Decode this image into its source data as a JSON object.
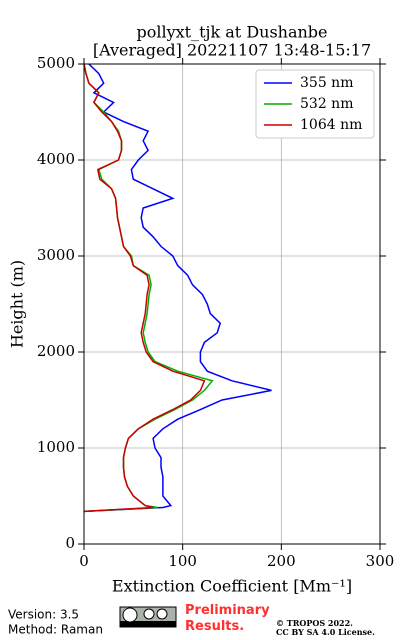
{
  "chart_data": {
    "type": "line",
    "title": "pollyxt_tjk at Dushanbe",
    "subtitle": "[Averaged] 20221107 13:48-15:17",
    "xlabel": "Extinction Coefficient [Mm⁻¹]",
    "ylabel": "Height (m)",
    "y": [
      340,
      380,
      400,
      500,
      600,
      700,
      800,
      900,
      1000,
      1100,
      1200,
      1300,
      1400,
      1500,
      1600,
      1700,
      1800,
      1900,
      2000,
      2100,
      2200,
      2300,
      2400,
      2500,
      2600,
      2700,
      2800,
      2900,
      3000,
      3100,
      3200,
      3300,
      3400,
      3500,
      3600,
      3700,
      3800,
      3900,
      4000,
      4100,
      4200,
      4300,
      4400,
      4500,
      4600,
      4700,
      4800,
      4900,
      5000
    ],
    "series": [
      {
        "name": "355 nm",
        "color": "#0000ff",
        "values": [
          0,
          80,
          88,
          80,
          80,
          80,
          78,
          78,
          72,
          70,
          80,
          95,
          118,
          140,
          190,
          150,
          125,
          118,
          118,
          122,
          135,
          138,
          128,
          125,
          120,
          110,
          105,
          95,
          90,
          78,
          70,
          60,
          58,
          60,
          90,
          70,
          50,
          48,
          55,
          65,
          60,
          65,
          40,
          20,
          30,
          10,
          20,
          15,
          5
        ]
      },
      {
        "name": "532 nm",
        "color": "#00b000",
        "values": [
          0,
          75,
          62,
          50,
          44,
          41,
          40,
          40,
          42,
          45,
          55,
          72,
          92,
          110,
          122,
          130,
          95,
          72,
          65,
          62,
          60,
          62,
          64,
          65,
          66,
          68,
          66,
          50,
          48,
          40,
          38,
          36,
          34,
          33,
          32,
          28,
          18,
          15,
          35,
          38,
          38,
          35,
          28,
          20,
          10,
          15,
          5,
          2,
          0
        ]
      },
      {
        "name": "1064 nm",
        "color": "#cc0000",
        "values": [
          0,
          70,
          62,
          50,
          44,
          41,
          40,
          40,
          42,
          45,
          55,
          70,
          90,
          108,
          118,
          122,
          90,
          70,
          63,
          60,
          58,
          60,
          62,
          63,
          64,
          66,
          64,
          50,
          47,
          40,
          38,
          36,
          34,
          33,
          32,
          28,
          16,
          14,
          35,
          38,
          38,
          34,
          28,
          18,
          10,
          15,
          5,
          2,
          0
        ]
      }
    ],
    "xlim": [
      0,
      300
    ],
    "xticks": [
      0,
      100,
      200,
      300
    ],
    "ylim": [
      0,
      5000
    ],
    "yticks": [
      0,
      1000,
      2000,
      3000,
      4000,
      5000
    ],
    "grid": true,
    "legend": "upper right"
  },
  "footer": {
    "version": "Version: 3.5",
    "method": "Method: Raman",
    "status": "Preliminary Results.",
    "copyright": "© TROPOS 2022.",
    "license": "CC BY SA 4.0 License."
  }
}
